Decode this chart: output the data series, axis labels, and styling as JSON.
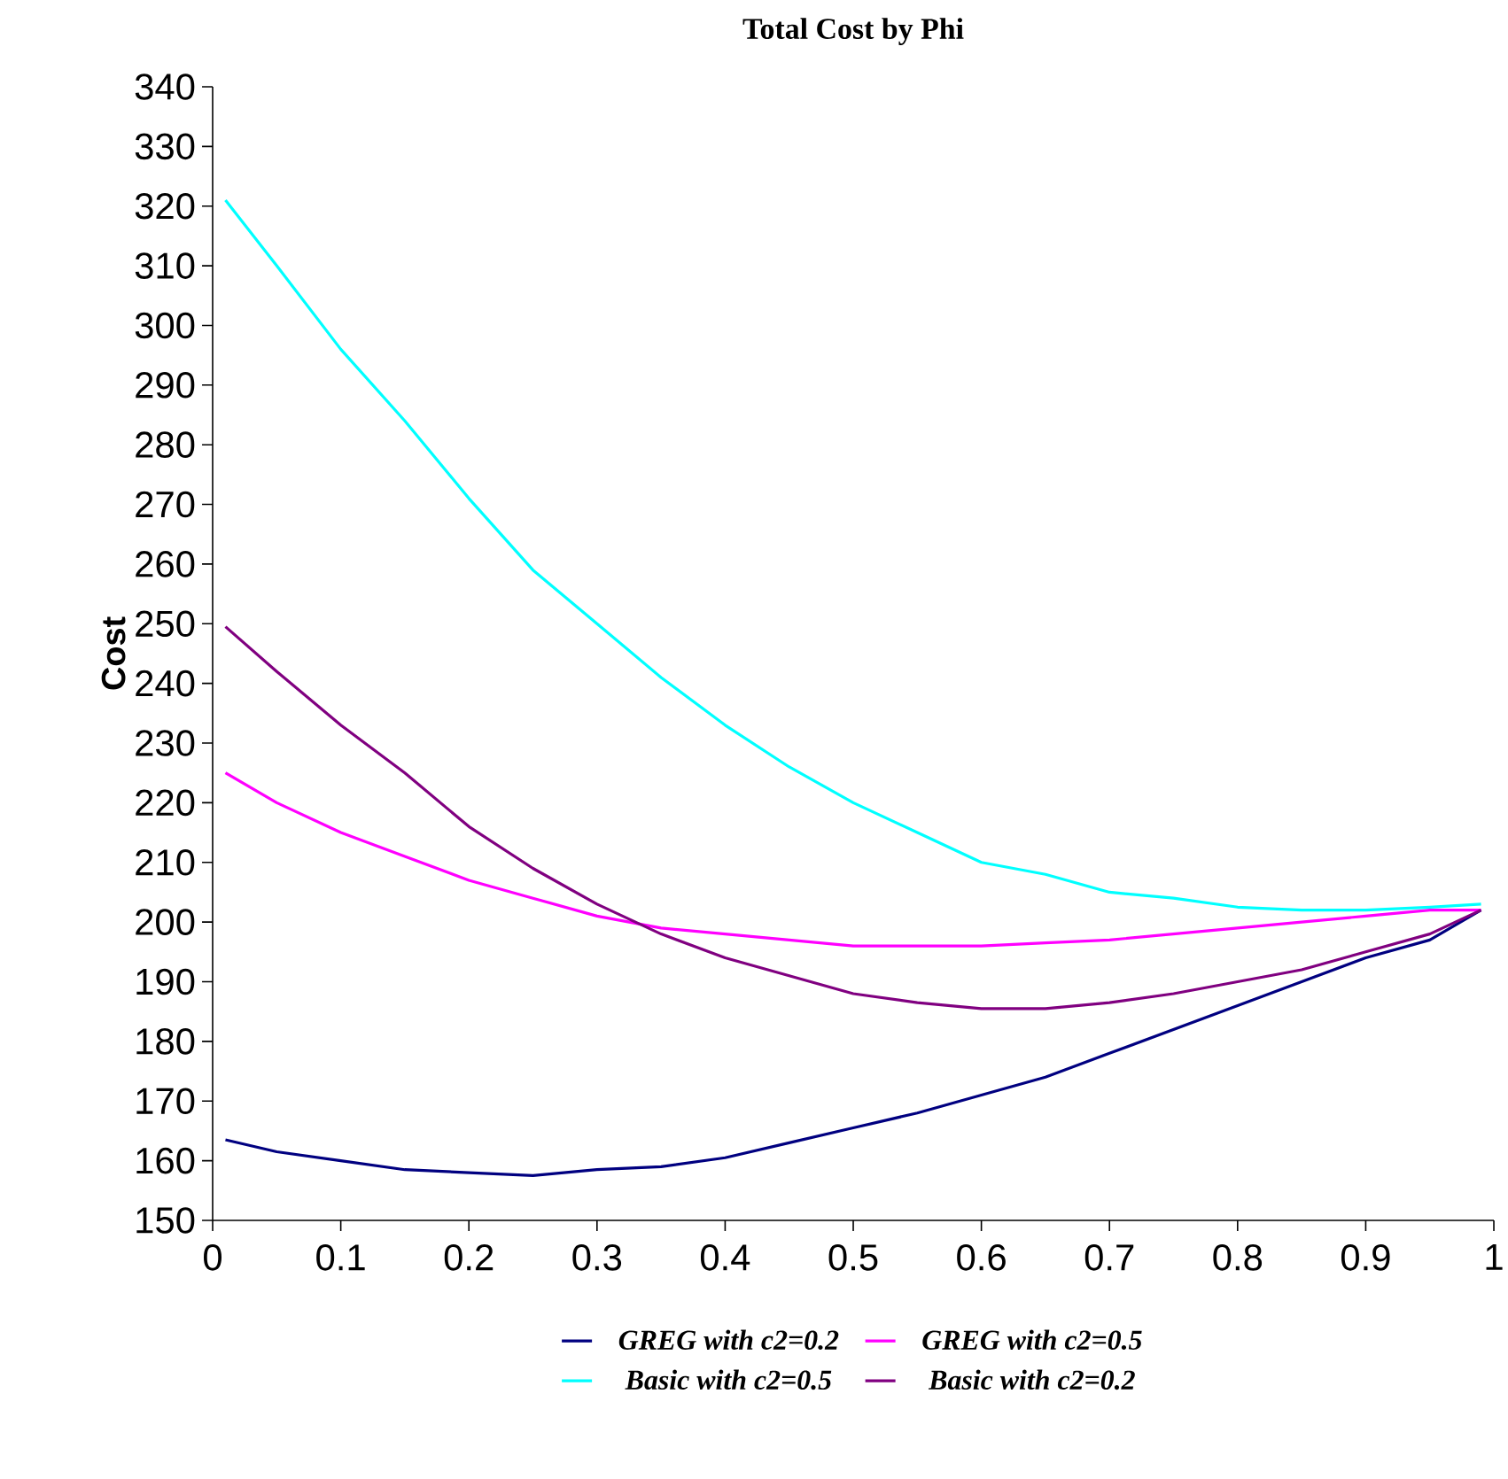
{
  "chart_data": {
    "type": "line",
    "title": "Total Cost by Phi",
    "ylabel": "Cost",
    "x": [
      0.01,
      0.05,
      0.1,
      0.15,
      0.2,
      0.25,
      0.3,
      0.35,
      0.4,
      0.45,
      0.5,
      0.55,
      0.6,
      0.65,
      0.7,
      0.75,
      0.8,
      0.85,
      0.9,
      0.95,
      0.99
    ],
    "xlim": [
      0,
      1
    ],
    "xticks": [
      {
        "value": 0,
        "label": "0"
      },
      0.1,
      0.2,
      0.3,
      0.4,
      0.5,
      0.6,
      0.7,
      0.8,
      0.9,
      {
        "value": 1,
        "label": "1"
      }
    ],
    "ylim": [
      150,
      340
    ],
    "yticks": [
      150,
      160,
      170,
      180,
      190,
      200,
      210,
      220,
      230,
      240,
      250,
      260,
      270,
      280,
      290,
      300,
      310,
      320,
      330,
      340
    ],
    "legend": "bottom",
    "series": [
      {
        "name": "GREG with c2=0.2",
        "color": "#000080",
        "values": [
          163.5,
          161.5,
          160,
          158.5,
          158,
          157.5,
          158.5,
          159,
          160.5,
          163,
          165.5,
          168,
          171,
          174,
          178,
          182,
          186,
          190,
          194,
          197,
          202
        ]
      },
      {
        "name": "GREG with c2=0.5",
        "color": "#ff00ff",
        "values": [
          225,
          220,
          215,
          211,
          207,
          204,
          201,
          199,
          198,
          197,
          196,
          196,
          196,
          196.5,
          197,
          198,
          199,
          200,
          201,
          202,
          202
        ]
      },
      {
        "name": "Basic with c2=0.5",
        "color": "#00ffff",
        "values": [
          321,
          310,
          296,
          284,
          271,
          259,
          250,
          241,
          233,
          226,
          220,
          215,
          210,
          208,
          205,
          204,
          202.5,
          202,
          202,
          202.5,
          203
        ]
      },
      {
        "name": "Basic with c2=0.2",
        "color": "#800080",
        "values": [
          249.5,
          242,
          233,
          225,
          216,
          209,
          203,
          198,
          194,
          191,
          188,
          186.5,
          185.5,
          185.5,
          186.5,
          188,
          190,
          192,
          195,
          198,
          202
        ]
      }
    ]
  }
}
